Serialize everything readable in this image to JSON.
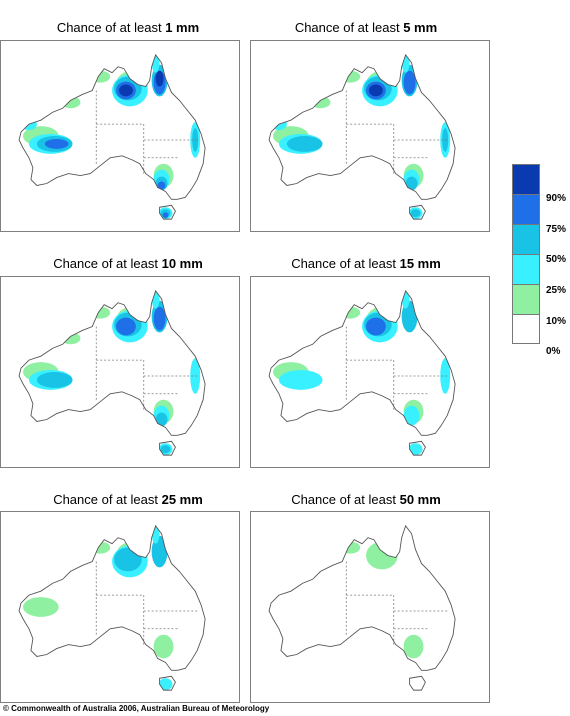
{
  "panels": [
    {
      "prefix": "Chance of at least ",
      "amount": "1 mm",
      "level": 6
    },
    {
      "prefix": "Chance of at least ",
      "amount": "5 mm",
      "level": 5
    },
    {
      "prefix": "Chance of at least ",
      "amount": "10 mm",
      "level": 4
    },
    {
      "prefix": "Chance of at least ",
      "amount": "15 mm",
      "level": 3
    },
    {
      "prefix": "Chance of at least ",
      "amount": "25 mm",
      "level": 2
    },
    {
      "prefix": "Chance of at least ",
      "amount": "50 mm",
      "level": 1
    }
  ],
  "legend": {
    "ticks": [
      "90%",
      "75%",
      "50%",
      "25%",
      "10%",
      "0%"
    ],
    "colors": [
      "#0a3ab0",
      "#1e6fe8",
      "#19c3e6",
      "#38f0ff",
      "#8ef0a0",
      "#ffffff"
    ]
  },
  "copyright": "© Commonwealth of Australia 2006, Australian Bureau of Meteorology"
}
